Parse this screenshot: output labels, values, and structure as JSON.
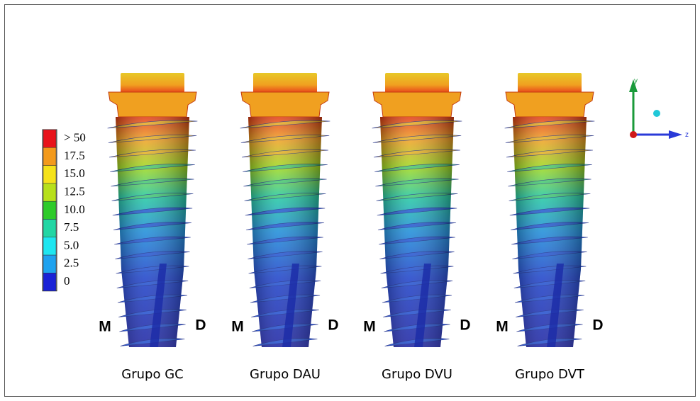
{
  "legend": {
    "items": [
      {
        "label": "> 50",
        "color": "#e8131b"
      },
      {
        "label": "17.5",
        "color": "#f39a1c"
      },
      {
        "label": "15.0",
        "color": "#f5e21a"
      },
      {
        "label": "12.5",
        "color": "#b7e01b"
      },
      {
        "label": "10.0",
        "color": "#2ecb2a"
      },
      {
        "label": "7.5",
        "color": "#22d6a4"
      },
      {
        "label": "5.0",
        "color": "#1ee6f0"
      },
      {
        "label": "2.5",
        "color": "#1ea2ef"
      },
      {
        "label": "0",
        "color": "#1a22d6"
      }
    ]
  },
  "implants": [
    {
      "label": "Grupo GC",
      "mesial": "M",
      "distal": "D"
    },
    {
      "label": "Grupo DAU",
      "mesial": "M",
      "distal": "D"
    },
    {
      "label": "Grupo DVU",
      "mesial": "M",
      "distal": "D"
    },
    {
      "label": "Grupo DVT",
      "mesial": "M",
      "distal": "D"
    }
  ],
  "axes": {
    "y": "y",
    "z": "z"
  }
}
